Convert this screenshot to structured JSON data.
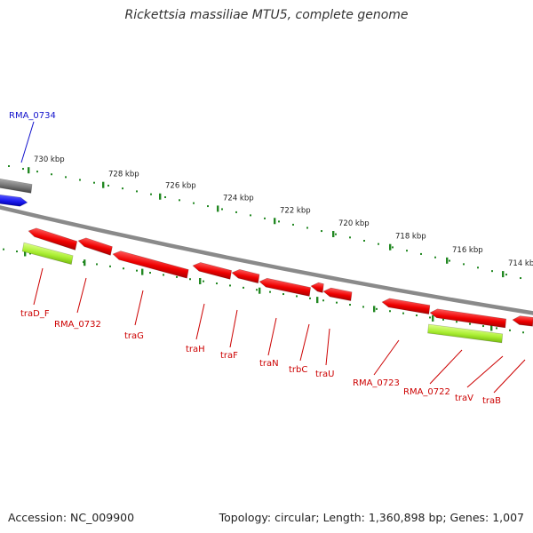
{
  "title": "Rickettsia massiliae MTU5, complete genome",
  "footer": {
    "accession": "Accession: NC_009900",
    "topology": "Topology: circular; Length: 1,360,898 bp; Genes: 1,007"
  },
  "colors": {
    "gene_forward": "#2020ee",
    "gene_reverse": "#ee0000",
    "pseudo_gray": "#777777",
    "highlight_green": "#aaee33",
    "backbone": "#888888",
    "tick_green": "#228822",
    "label_red": "#cc0000",
    "label_blue": "#1111cc"
  },
  "scale_labels": [
    "730 kbp",
    "728 kbp",
    "726 kbp",
    "724 kbp",
    "722 kbp",
    "720 kbp",
    "718 kbp",
    "716 kbp",
    "714 kbp"
  ],
  "forward_labels": [
    "RMA_0734"
  ],
  "reverse_labels": [
    "traD_F",
    "RMA_0732",
    "traG",
    "traH",
    "traF",
    "traN",
    "trbC",
    "traU",
    "RMA_0723",
    "RMA_0722",
    "traV",
    "traB"
  ]
}
